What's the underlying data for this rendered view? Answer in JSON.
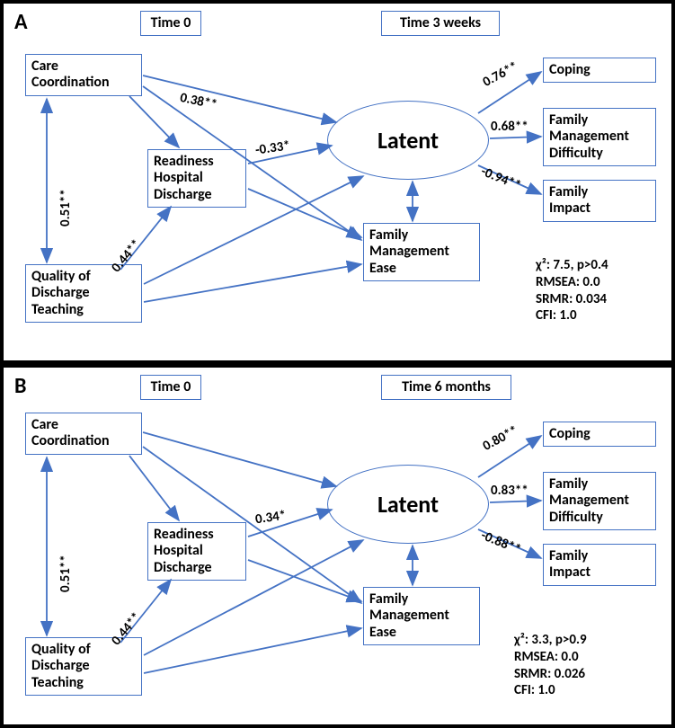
{
  "colors": {
    "node_border": "#4472c4",
    "arrow": "#4472c4",
    "panel_border": "#000000",
    "background": "#ffffff",
    "text": "#000000"
  },
  "typography": {
    "font_family": "Calibri, Arial, sans-serif",
    "label_fontsize": 16,
    "coef_fontsize": 15,
    "panel_letter_fontsize": 24,
    "latent_fontsize": 26
  },
  "panel_a": {
    "letter": "A",
    "time0": "Time 0",
    "time1": "Time 3 weeks",
    "nodes": {
      "care_coord": "Care\nCoordination",
      "qdt": "Quality of\nDischarge\nTeaching",
      "readiness": "Readiness\nHospital\nDischarge",
      "latent": "Latent",
      "fme": "Family\nManagement\nEase",
      "coping": "Coping",
      "fmd": "Family\nManagement\nDifficulty",
      "fi": "Family\nImpact"
    },
    "coefs": {
      "cc_qdt": "0.51**",
      "cc_latent": "0.38**",
      "rhd_latent": "-0.33*",
      "qdt_rhd": "0.44**",
      "latent_coping": "0.76**",
      "latent_fmd": "0.68**",
      "latent_fi": "-0.94**"
    },
    "fit": {
      "chi2": "χ²: 7.5, p>0.4",
      "rmsea": "RMSEA: 0.0",
      "srmr": "SRMR: 0.034",
      "cfi": "CFI: 1.0"
    }
  },
  "panel_b": {
    "letter": "B",
    "time0": "Time 0",
    "time1": "Time 6 months",
    "nodes": {
      "care_coord": "Care\nCoordination",
      "qdt": "Quality of\nDischarge\nTeaching",
      "readiness": "Readiness\nHospital\nDischarge",
      "latent": "Latent",
      "fme": "Family\nManagement\nEase",
      "coping": "Coping",
      "fmd": "Family\nManagement\nDifficulty",
      "fi": "Family\nImpact"
    },
    "coefs": {
      "cc_qdt": "0.51**",
      "rhd_latent": "0.34*",
      "qdt_rhd": "0.44**",
      "latent_coping": "0.80**",
      "latent_fmd": "0.83**",
      "latent_fi": "-0.88**"
    },
    "fit": {
      "chi2": "χ²: 3.3, p>0.9",
      "rmsea": "RMSEA: 0.0",
      "srmr": "SRMR: 0.026",
      "cfi": "CFI: 1.0"
    }
  }
}
